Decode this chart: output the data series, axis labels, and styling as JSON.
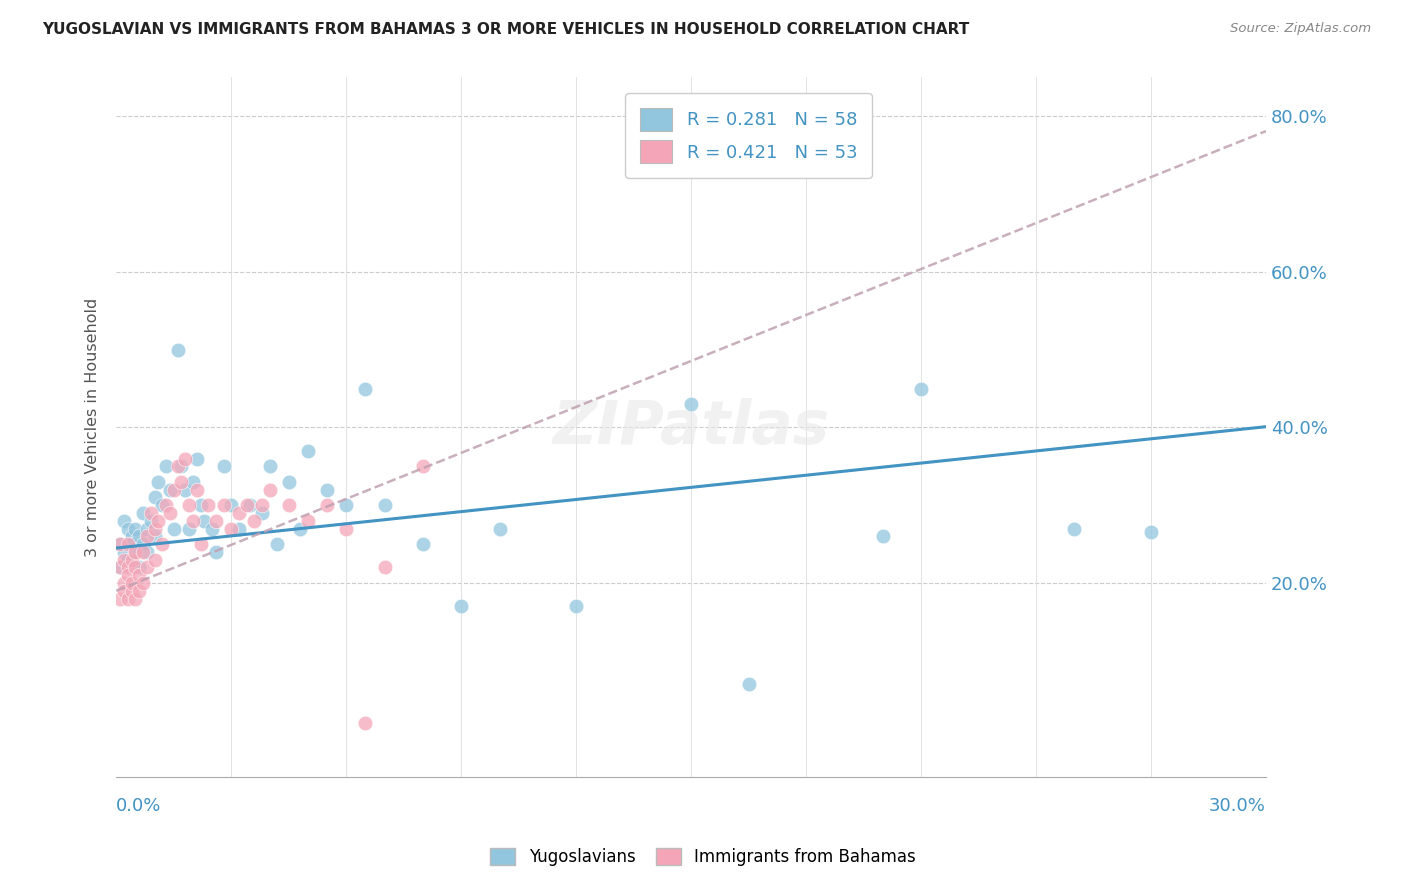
{
  "title": "YUGOSLAVIAN VS IMMIGRANTS FROM BAHAMAS 3 OR MORE VEHICLES IN HOUSEHOLD CORRELATION CHART",
  "source": "Source: ZipAtlas.com",
  "ylabel": "3 or more Vehicles in Household",
  "ytick_values": [
    0.2,
    0.4,
    0.6,
    0.8
  ],
  "xlim": [
    0.0,
    0.3
  ],
  "ylim": [
    -0.05,
    0.85
  ],
  "color_blue": "#92c5de",
  "color_pink": "#f4a6b8",
  "line_blue": "#4393c3",
  "line_pink": "#d6604d",
  "axis_label_color": "#4393c3",
  "yugo_x": [
    0.001,
    0.001,
    0.002,
    0.002,
    0.003,
    0.003,
    0.004,
    0.004,
    0.005,
    0.005,
    0.006,
    0.006,
    0.007,
    0.007,
    0.008,
    0.008,
    0.009,
    0.01,
    0.01,
    0.011,
    0.012,
    0.013,
    0.014,
    0.015,
    0.016,
    0.017,
    0.018,
    0.019,
    0.02,
    0.021,
    0.022,
    0.023,
    0.025,
    0.026,
    0.028,
    0.03,
    0.032,
    0.035,
    0.038,
    0.04,
    0.042,
    0.045,
    0.048,
    0.05,
    0.055,
    0.06,
    0.065,
    0.07,
    0.08,
    0.09,
    0.1,
    0.12,
    0.15,
    0.165,
    0.2,
    0.21,
    0.25,
    0.27
  ],
  "yugo_y": [
    0.25,
    0.22,
    0.28,
    0.24,
    0.27,
    0.23,
    0.26,
    0.25,
    0.24,
    0.27,
    0.22,
    0.26,
    0.29,
    0.25,
    0.27,
    0.24,
    0.28,
    0.31,
    0.26,
    0.33,
    0.3,
    0.35,
    0.32,
    0.27,
    0.5,
    0.35,
    0.32,
    0.27,
    0.33,
    0.36,
    0.3,
    0.28,
    0.27,
    0.24,
    0.35,
    0.3,
    0.27,
    0.3,
    0.29,
    0.35,
    0.25,
    0.33,
    0.27,
    0.37,
    0.32,
    0.3,
    0.45,
    0.3,
    0.25,
    0.17,
    0.27,
    0.17,
    0.43,
    0.07,
    0.26,
    0.45,
    0.27,
    0.265
  ],
  "bah_x": [
    0.001,
    0.001,
    0.001,
    0.002,
    0.002,
    0.002,
    0.003,
    0.003,
    0.003,
    0.003,
    0.004,
    0.004,
    0.004,
    0.005,
    0.005,
    0.005,
    0.006,
    0.006,
    0.007,
    0.007,
    0.008,
    0.008,
    0.009,
    0.01,
    0.01,
    0.011,
    0.012,
    0.013,
    0.014,
    0.015,
    0.016,
    0.017,
    0.018,
    0.019,
    0.02,
    0.021,
    0.022,
    0.024,
    0.026,
    0.028,
    0.03,
    0.032,
    0.034,
    0.036,
    0.038,
    0.04,
    0.045,
    0.05,
    0.055,
    0.06,
    0.065,
    0.07,
    0.08
  ],
  "bah_y": [
    0.22,
    0.18,
    0.25,
    0.2,
    0.23,
    0.19,
    0.22,
    0.18,
    0.25,
    0.21,
    0.19,
    0.23,
    0.2,
    0.22,
    0.18,
    0.24,
    0.21,
    0.19,
    0.24,
    0.2,
    0.26,
    0.22,
    0.29,
    0.27,
    0.23,
    0.28,
    0.25,
    0.3,
    0.29,
    0.32,
    0.35,
    0.33,
    0.36,
    0.3,
    0.28,
    0.32,
    0.25,
    0.3,
    0.28,
    0.3,
    0.27,
    0.29,
    0.3,
    0.28,
    0.3,
    0.32,
    0.3,
    0.28,
    0.3,
    0.27,
    0.02,
    0.22,
    0.35
  ]
}
